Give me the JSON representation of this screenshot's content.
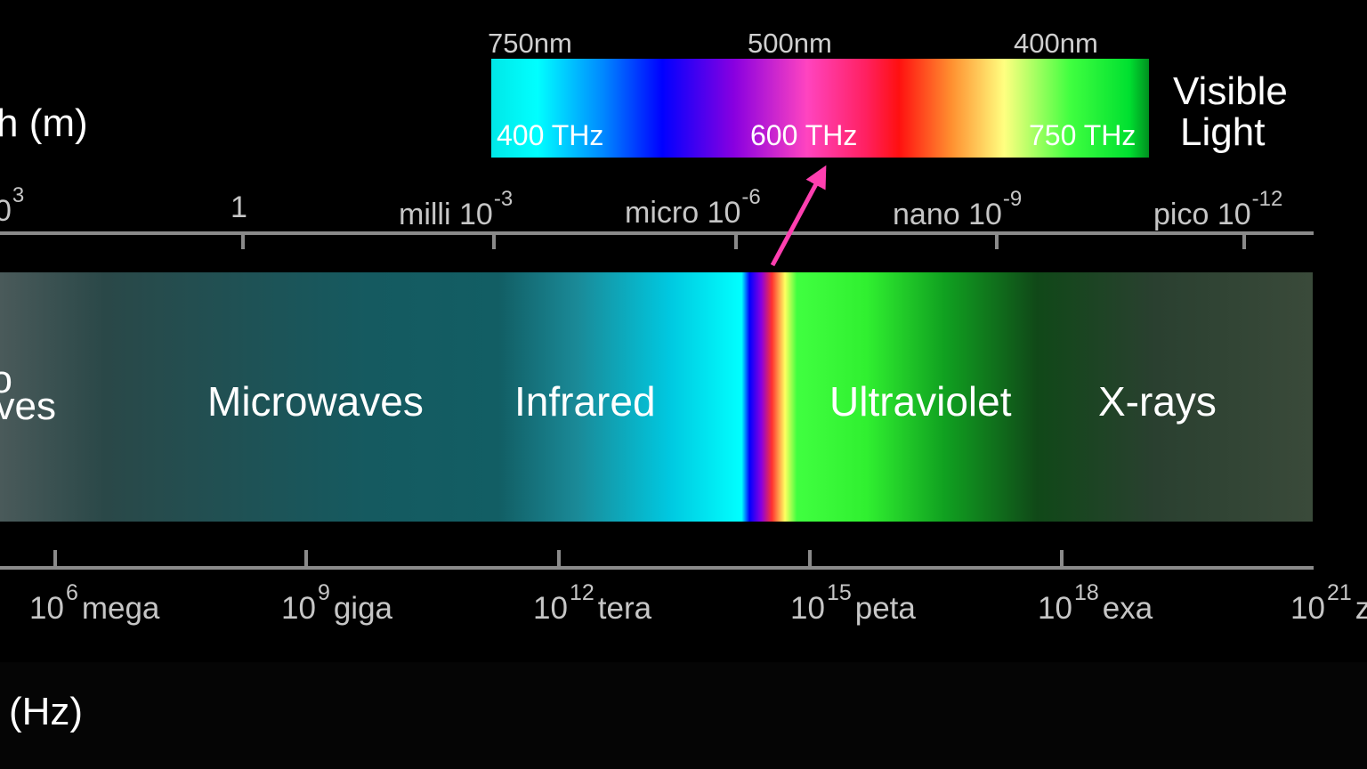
{
  "wavelength_axis_title": "h (m)",
  "frequency_axis_title": "(Hz)",
  "visible_light": {
    "label_line1": "Visible",
    "label_line2": "Light",
    "nm_labels": [
      {
        "value": "750",
        "unit": "nm"
      },
      {
        "value": "500",
        "unit": "nm"
      },
      {
        "value": "400",
        "unit": "nm"
      }
    ],
    "thz_labels": [
      "400 THz",
      "600 THz",
      "750 THz"
    ]
  },
  "wavelength_scale": [
    {
      "prefix": "",
      "base": "0",
      "exp": "3"
    },
    {
      "prefix": "",
      "base": "1",
      "exp": ""
    },
    {
      "prefix": "milli",
      "base": "10",
      "exp": "-3"
    },
    {
      "prefix": "micro",
      "base": "10",
      "exp": "-6"
    },
    {
      "prefix": "nano",
      "base": "10",
      "exp": "-9"
    },
    {
      "prefix": "pico",
      "base": "10",
      "exp": "-12"
    }
  ],
  "bands": [
    {
      "line1": "lio",
      "line2": "aves"
    },
    {
      "label": "Microwaves"
    },
    {
      "label": "Infrared"
    },
    {
      "label": "Ultraviolet"
    },
    {
      "label": "X-rays"
    }
  ],
  "frequency_scale": [
    {
      "base": "10",
      "exp": "6",
      "prefix": "mega"
    },
    {
      "base": "10",
      "exp": "9",
      "prefix": "giga"
    },
    {
      "base": "10",
      "exp": "12",
      "prefix": "tera"
    },
    {
      "base": "10",
      "exp": "15",
      "prefix": "peta"
    },
    {
      "base": "10",
      "exp": "18",
      "prefix": "exa"
    },
    {
      "base": "10",
      "exp": "21",
      "prefix": "z"
    }
  ],
  "colors": {
    "background": "#000000",
    "axis": "#8a8a8a",
    "arrow": "#ff3fb0",
    "label": "#ffffff",
    "scale_text": "#c6c6c6"
  }
}
